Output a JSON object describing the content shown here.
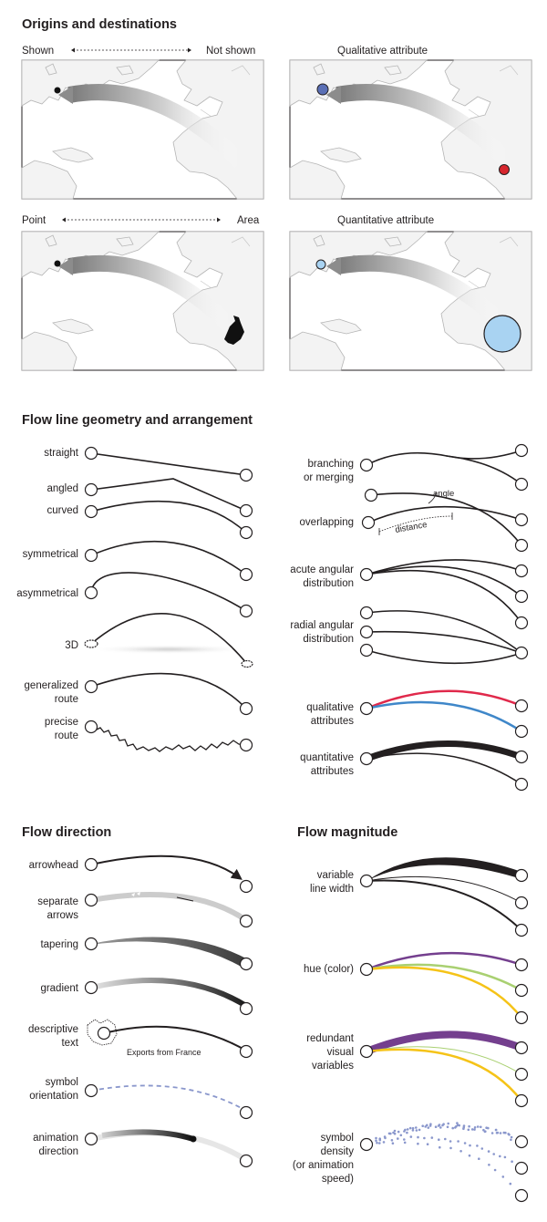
{
  "sections": {
    "origins": "Origins and destinations",
    "geometry": "Flow line geometry and arrangement",
    "direction": "Flow direction",
    "magnitude": "Flow magnitude"
  },
  "origins": {
    "shown_label": "Shown",
    "not_shown_label": "Not shown",
    "qualitative_label": "Qualitative attribute",
    "point_label": "Point",
    "area_label": "Area",
    "quantitative_label": "Quantitative attribute"
  },
  "geometry": {
    "straight": "straight",
    "angled": "angled",
    "curved": "curved",
    "symmetrical": "symmetrical",
    "asymmetrical": "asymmetrical",
    "three_d": "3D",
    "generalized": [
      "generalized",
      "route"
    ],
    "precise": [
      "precise",
      "route"
    ],
    "branching": [
      "branching",
      "or merging"
    ],
    "overlapping": "overlapping",
    "angle": "angle",
    "distance": "distance",
    "acute": [
      "acute angular",
      "distribution"
    ],
    "radial": [
      "radial angular",
      "distribution"
    ],
    "qualitative": [
      "qualitative",
      "attributes"
    ],
    "quantitative": [
      "quantitative",
      "attributes"
    ]
  },
  "direction": {
    "arrowhead": "arrowhead",
    "separate": [
      "separate",
      "arrows"
    ],
    "tapering": "tapering",
    "gradient": "gradient",
    "descriptive": [
      "descriptive",
      "text"
    ],
    "exports": "Exports from France",
    "symbol": [
      "symbol",
      "orientation"
    ],
    "animation": [
      "animation",
      "direction"
    ]
  },
  "magnitude": {
    "variable": [
      "variable",
      "line width"
    ],
    "hue": "hue (color)",
    "redundant": [
      "redundant",
      "visual",
      "variables"
    ],
    "density": [
      "symbol",
      "density",
      "(or animation",
      "speed)"
    ]
  },
  "colors": {
    "ink": "#231f20",
    "origin_blue": "#5a6fb5",
    "dest_red": "#d7262e",
    "light_blue": "#a9d3f2",
    "flow_red": "#e0294b",
    "flow_blue": "#3f87c9",
    "purple": "#743f8e",
    "green": "#a9d071",
    "yellow": "#f5c318",
    "symbol_blue": "#8a97cc"
  }
}
